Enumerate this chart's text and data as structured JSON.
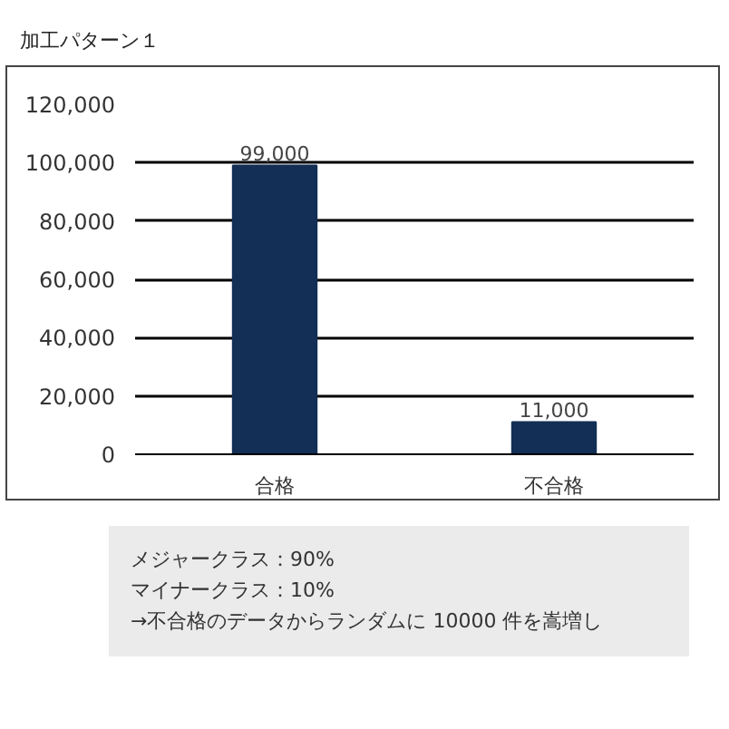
{
  "chart_data": {
    "type": "bar",
    "title": "加工パターン１",
    "categories": [
      "合格",
      "不合格"
    ],
    "values": [
      99000,
      11000
    ],
    "color": "#132f55",
    "ylim": [
      0,
      120000
    ],
    "yticks": [
      {
        "value": 0,
        "label": "0"
      },
      {
        "value": 20000,
        "label": "20,000"
      },
      {
        "value": 40000,
        "label": "40,000"
      },
      {
        "value": 60000,
        "label": "60,000"
      },
      {
        "value": 80000,
        "label": "80,000"
      },
      {
        "value": 100000,
        "label": "100,000"
      },
      {
        "value": 120000,
        "label": "120,000"
      }
    ],
    "grid": "y",
    "value_labels": [
      "99,000",
      "11,000"
    ],
    "annotations": [
      "メジャークラス：90%",
      "マイナークラス：10%",
      "→不合格のデータからランダムに 10000 件を嵩増し"
    ]
  }
}
